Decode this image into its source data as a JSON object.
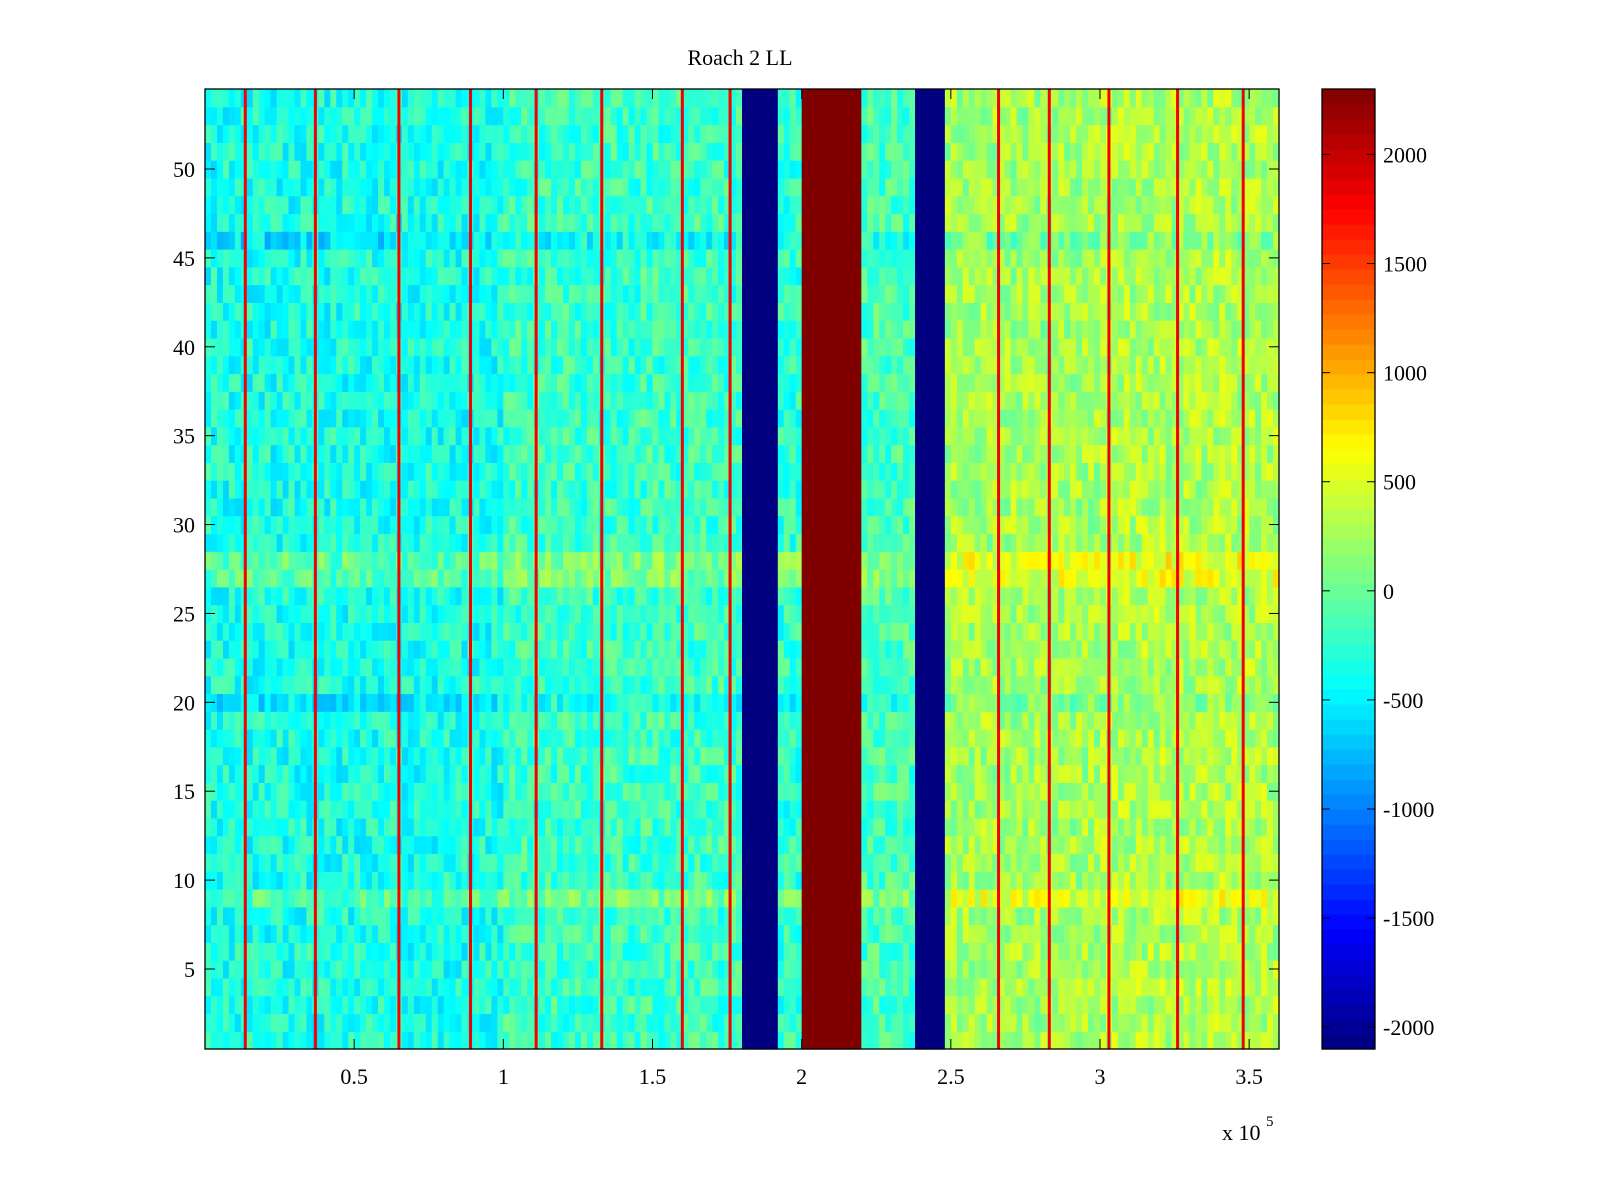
{
  "chart_data": {
    "type": "heatmap",
    "title": "Roach 2 LL",
    "xlabel": "",
    "ylabel": "",
    "x_exponent_label": "x 10",
    "x_exponent_power": "5",
    "xlim": [
      0,
      360000
    ],
    "ylim": [
      0.5,
      54.5
    ],
    "x_ticks": [
      {
        "value": 50000,
        "label": "0.5"
      },
      {
        "value": 100000,
        "label": "1"
      },
      {
        "value": 150000,
        "label": "1.5"
      },
      {
        "value": 200000,
        "label": "2"
      },
      {
        "value": 250000,
        "label": "2.5"
      },
      {
        "value": 300000,
        "label": "3"
      },
      {
        "value": 350000,
        "label": "3.5"
      }
    ],
    "y_ticks": [
      {
        "value": 5,
        "label": "5"
      },
      {
        "value": 10,
        "label": "10"
      },
      {
        "value": 15,
        "label": "15"
      },
      {
        "value": 20,
        "label": "20"
      },
      {
        "value": 25,
        "label": "25"
      },
      {
        "value": 30,
        "label": "30"
      },
      {
        "value": 35,
        "label": "35"
      },
      {
        "value": 40,
        "label": "40"
      },
      {
        "value": 45,
        "label": "45"
      },
      {
        "value": 50,
        "label": "50"
      }
    ],
    "rows": 54,
    "colormap": "jet",
    "clim": [
      -2100,
      2300
    ],
    "colorbar": {
      "position": "right",
      "ticks": [
        {
          "value": 2000,
          "label": "2000"
        },
        {
          "value": 1500,
          "label": "1500"
        },
        {
          "value": 1000,
          "label": "1000"
        },
        {
          "value": 500,
          "label": "500"
        },
        {
          "value": 0,
          "label": "0"
        },
        {
          "value": -500,
          "label": "-500"
        },
        {
          "value": -1000,
          "label": "-1000"
        },
        {
          "value": -1500,
          "label": "-1500"
        },
        {
          "value": -2000,
          "label": "-2000"
        }
      ]
    },
    "band_profile": [
      {
        "x_start": 0,
        "x_end": 100000,
        "level": -350
      },
      {
        "x_start": 100000,
        "x_end": 180000,
        "level": -200
      },
      {
        "x_start": 180000,
        "x_end": 192000,
        "level": -2100
      },
      {
        "x_start": 192000,
        "x_end": 200000,
        "level": -250
      },
      {
        "x_start": 200000,
        "x_end": 221000,
        "level": 2300
      },
      {
        "x_start": 221000,
        "x_end": 238000,
        "level": -150
      },
      {
        "x_start": 238000,
        "x_end": 249000,
        "level": -2100
      },
      {
        "x_start": 249000,
        "x_end": 300000,
        "level": 250
      },
      {
        "x_start": 300000,
        "x_end": 360000,
        "level": 300
      }
    ],
    "spike_columns_x": [
      13500,
      37000,
      65000,
      89000,
      111000,
      133000,
      160000,
      176000,
      266000,
      283000,
      303000,
      326000,
      348000
    ],
    "spike_level": 1800,
    "notable_rows": [
      {
        "row": 9,
        "offset": 250
      },
      {
        "row": 20,
        "offset": -150
      },
      {
        "row": 27,
        "offset": 250
      },
      {
        "row": 28,
        "offset": 300
      },
      {
        "row": 46,
        "offset": -200
      }
    ]
  }
}
